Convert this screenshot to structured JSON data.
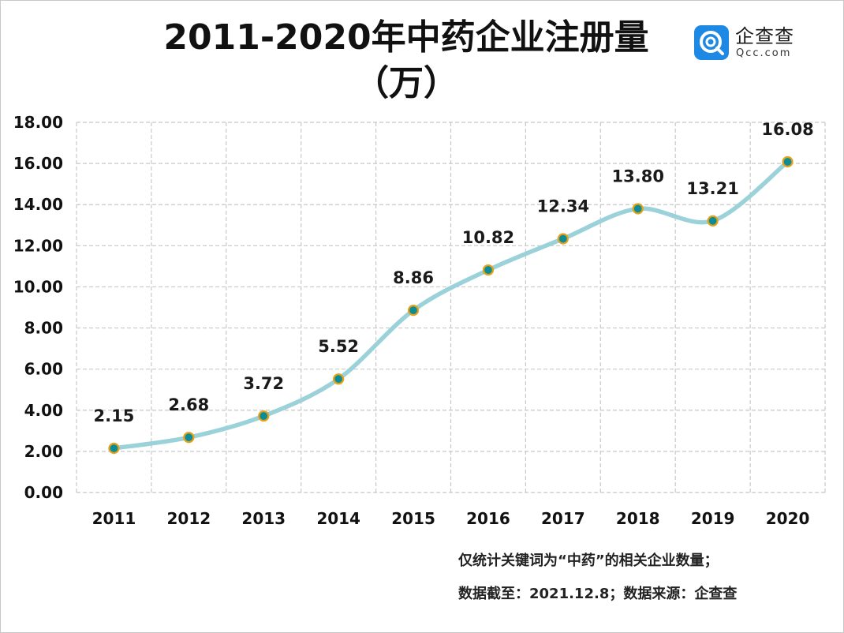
{
  "chart_data": {
    "type": "line",
    "title": "2011-2020年中药企业注册量",
    "unit_label": "（万）",
    "categories": [
      "2011",
      "2012",
      "2013",
      "2014",
      "2015",
      "2016",
      "2017",
      "2018",
      "2019",
      "2020"
    ],
    "values": [
      2.15,
      2.68,
      3.72,
      5.52,
      8.86,
      10.82,
      12.34,
      13.8,
      13.21,
      16.08
    ],
    "data_labels": [
      "2.15",
      "2.68",
      "3.72",
      "5.52",
      "8.86",
      "10.82",
      "12.34",
      "13.80",
      "13.21",
      "16.08"
    ],
    "ylim": [
      0,
      18
    ],
    "yticks": [
      "0.00",
      "2.00",
      "4.00",
      "6.00",
      "8.00",
      "10.00",
      "12.00",
      "14.00",
      "16.00",
      "18.00"
    ],
    "grid": true,
    "xlabel": "",
    "ylabel": ""
  },
  "colors": {
    "line": "#9bd2da",
    "marker_fill": "#0e8c96",
    "marker_stroke": "#e3a21a",
    "grid": "#c8c8c8",
    "logo": "#1e88e5"
  },
  "logo": {
    "name": "企查查",
    "domain": "Qcc.com"
  },
  "notes": {
    "line1": "仅统计关键词为“中药”的相关企业数量；",
    "line2": "数据截至：2021.12.8；数据来源：企查查"
  }
}
